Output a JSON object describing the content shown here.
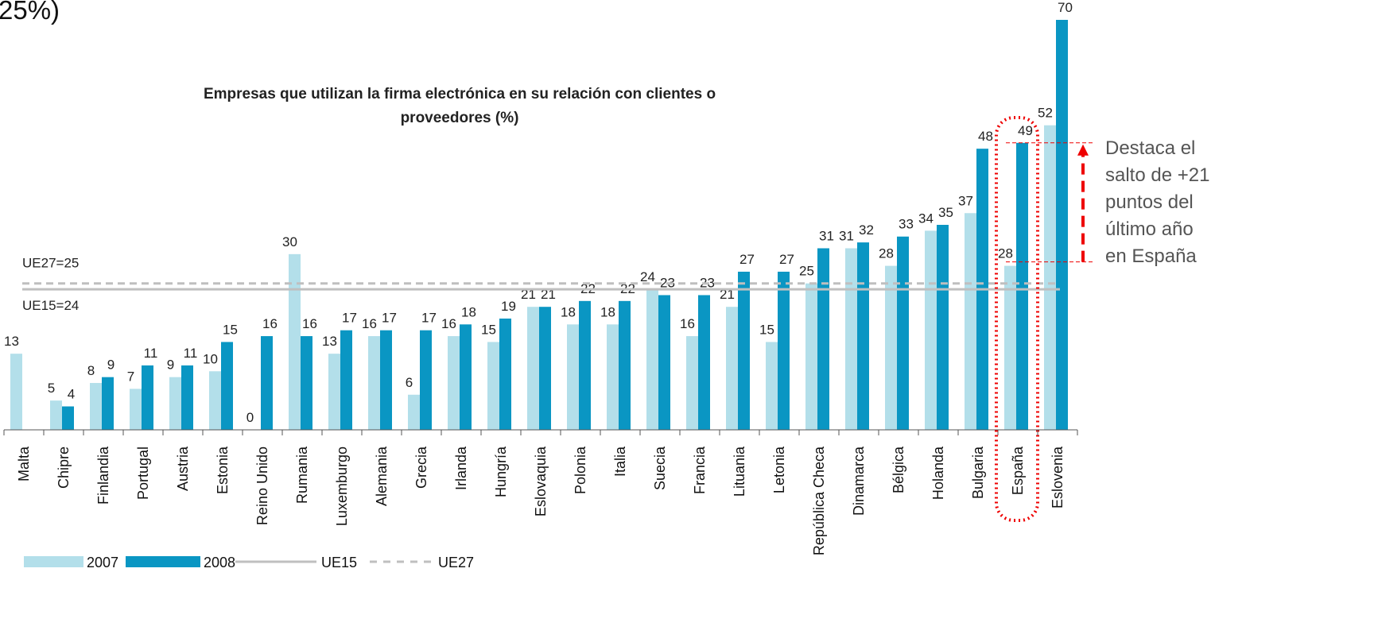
{
  "header_fragment": "25%)",
  "chart_data": {
    "type": "bar",
    "title": "Empresas que utilizan la firma electrónica en su relación con clientes o proveedores (%)",
    "categories": [
      "Malta",
      "Chipre",
      "Finlandia",
      "Portugal",
      "Austria",
      "Estonia",
      "Reino Unido",
      "Rumania",
      "Luxemburgo",
      "Alemania",
      "Grecia",
      "Irlanda",
      "Hungría",
      "Eslovaquia",
      "Polonia",
      "Italia",
      "Suecia",
      "Francia",
      "Lituania",
      "Letonia",
      "República Checa",
      "Dinamarca",
      "Bélgica",
      "Holanda",
      "Bulgaria",
      "España",
      "Eslovenia"
    ],
    "series": [
      {
        "name": "2007",
        "color": "#b3dfea",
        "values": [
          13,
          5,
          8,
          7,
          9,
          10,
          0,
          30,
          13,
          16,
          6,
          16,
          15,
          21,
          18,
          18,
          24,
          16,
          21,
          15,
          25,
          31,
          28,
          34,
          37,
          28,
          52
        ]
      },
      {
        "name": "2008",
        "color": "#0a96c3",
        "values": [
          null,
          4,
          9,
          11,
          11,
          15,
          16,
          16,
          17,
          17,
          17,
          18,
          19,
          21,
          22,
          22,
          23,
          23,
          27,
          27,
          31,
          32,
          33,
          35,
          48,
          49,
          70
        ]
      }
    ],
    "reference_lines": [
      {
        "name": "UE15",
        "value": 24,
        "label": "UE15=24",
        "color": "#bfbfbf",
        "style": "solid"
      },
      {
        "name": "UE27",
        "value": 25,
        "label": "UE27=25",
        "color": "#bfbfbf",
        "style": "dashed"
      }
    ],
    "ylim": [
      0,
      70
    ],
    "highlight_category": "España",
    "annotation": [
      "Destaca el",
      "salto de +21",
      "puntos del",
      "último año",
      "en España"
    ]
  }
}
